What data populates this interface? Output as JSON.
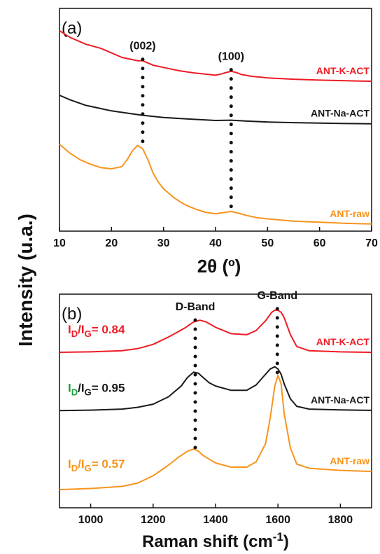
{
  "shared_ylabel": "Intensity (u.a.)",
  "chart_data": [
    {
      "type": "line",
      "panel_label": "(a)",
      "xlabel": "2θ (º)",
      "ylabel": "Intensity (u.a.)",
      "xlim": [
        10,
        70
      ],
      "xticks": [
        10,
        20,
        30,
        40,
        50,
        60,
        70
      ],
      "ylim": [
        0,
        1
      ],
      "yticks_shown": false,
      "grid": false,
      "series": [
        {
          "name": "ANT-K-ACT",
          "color": "#ee1c25",
          "x": [
            10,
            12,
            15,
            18,
            20,
            22,
            24,
            25,
            26,
            27,
            28,
            30,
            33,
            36,
            38,
            40,
            41,
            42,
            43,
            44,
            45,
            47,
            50,
            55,
            60,
            65,
            70
          ],
          "y": [
            0.9,
            0.87,
            0.84,
            0.82,
            0.8,
            0.78,
            0.77,
            0.765,
            0.765,
            0.755,
            0.745,
            0.735,
            0.72,
            0.71,
            0.705,
            0.7,
            0.705,
            0.712,
            0.718,
            0.712,
            0.703,
            0.695,
            0.688,
            0.682,
            0.678,
            0.675,
            0.673
          ]
        },
        {
          "name": "ANT-Na-ACT",
          "color": "#1a1a1a",
          "x": [
            10,
            12,
            15,
            18,
            20,
            23,
            26,
            30,
            35,
            40,
            43,
            46,
            50,
            55,
            60,
            65,
            70
          ],
          "y": [
            0.61,
            0.59,
            0.565,
            0.55,
            0.54,
            0.53,
            0.52,
            0.51,
            0.503,
            0.497,
            0.498,
            0.494,
            0.49,
            0.487,
            0.485,
            0.483,
            0.482
          ]
        },
        {
          "name": "ANT-raw",
          "color": "#f7941d",
          "x": [
            10,
            11,
            12,
            14,
            16,
            18,
            20,
            22,
            23,
            24,
            25,
            26,
            27,
            28,
            29,
            30,
            32,
            34,
            36,
            38,
            40,
            42,
            43,
            44,
            46,
            48,
            50,
            55,
            60,
            65,
            70
          ],
          "y": [
            0.39,
            0.37,
            0.35,
            0.32,
            0.3,
            0.285,
            0.28,
            0.29,
            0.32,
            0.36,
            0.385,
            0.37,
            0.32,
            0.26,
            0.22,
            0.19,
            0.15,
            0.12,
            0.1,
            0.085,
            0.078,
            0.085,
            0.088,
            0.083,
            0.07,
            0.06,
            0.055,
            0.045,
            0.04,
            0.035,
            0.032
          ]
        }
      ],
      "annotations": [
        {
          "text": "(002)",
          "x": 26
        },
        {
          "text": "(100)",
          "x": 43
        }
      ]
    },
    {
      "type": "line",
      "panel_label": "(b)",
      "xlabel": "Raman shift (cm-1)",
      "ylabel": "Intensity (u.a.)",
      "xlim": [
        900,
        1900
      ],
      "xticks": [
        1000,
        1200,
        1400,
        1600,
        1800
      ],
      "ylim": [
        0,
        1
      ],
      "yticks_shown": false,
      "grid": false,
      "series": [
        {
          "name": "ANT-K-ACT",
          "color": "#ee1c25",
          "x": [
            900,
            1000,
            1100,
            1150,
            1200,
            1250,
            1300,
            1330,
            1350,
            1370,
            1400,
            1450,
            1500,
            1530,
            1560,
            1580,
            1590,
            1600,
            1610,
            1620,
            1640,
            1660,
            1700,
            1800,
            1900
          ],
          "y": [
            0.728,
            0.73,
            0.735,
            0.745,
            0.765,
            0.8,
            0.84,
            0.87,
            0.878,
            0.87,
            0.845,
            0.815,
            0.81,
            0.83,
            0.875,
            0.915,
            0.925,
            0.925,
            0.915,
            0.89,
            0.81,
            0.755,
            0.735,
            0.73,
            0.728
          ]
        },
        {
          "name": "ANT-Na-ACT",
          "color": "#1a1a1a",
          "x": [
            900,
            1000,
            1100,
            1150,
            1200,
            1250,
            1290,
            1310,
            1330,
            1345,
            1360,
            1380,
            1400,
            1450,
            1500,
            1530,
            1560,
            1575,
            1590,
            1600,
            1610,
            1620,
            1640,
            1660,
            1700,
            1800,
            1900
          ],
          "y": [
            0.455,
            0.457,
            0.462,
            0.47,
            0.485,
            0.52,
            0.57,
            0.61,
            0.635,
            0.63,
            0.61,
            0.585,
            0.57,
            0.55,
            0.55,
            0.575,
            0.625,
            0.65,
            0.66,
            0.65,
            0.625,
            0.58,
            0.51,
            0.475,
            0.462,
            0.458,
            0.456
          ]
        },
        {
          "name": "ANT-raw",
          "color": "#f7941d",
          "x": [
            900,
            1000,
            1100,
            1150,
            1200,
            1250,
            1280,
            1310,
            1330,
            1345,
            1360,
            1400,
            1450,
            1500,
            1530,
            1560,
            1575,
            1590,
            1600,
            1610,
            1620,
            1640,
            1660,
            1700,
            1800,
            1900
          ],
          "y": [
            0.085,
            0.09,
            0.1,
            0.115,
            0.15,
            0.2,
            0.235,
            0.265,
            0.275,
            0.265,
            0.245,
            0.21,
            0.19,
            0.19,
            0.215,
            0.3,
            0.42,
            0.57,
            0.62,
            0.58,
            0.44,
            0.28,
            0.205,
            0.185,
            0.175,
            0.17
          ]
        }
      ],
      "annotations": [
        {
          "text": "D-Band",
          "x": 1335
        },
        {
          "text": "G-Band",
          "x": 1598
        }
      ],
      "ratio_labels": [
        {
          "prefix": "I",
          "sub1": "D",
          "mid": "/I",
          "sub2": "G",
          "value": "= 0.84",
          "color": "#ee1c25",
          "prefix_color": "#ee1c25"
        },
        {
          "prefix": "I",
          "sub1": "D",
          "mid": "/I",
          "sub2": "G",
          "value": "= 0.95",
          "color": "#1a1a1a",
          "prefix_color": "#1a9e3a"
        },
        {
          "prefix": "I",
          "sub1": "D",
          "mid": "/I",
          "sub2": "G",
          "value": "= 0.57",
          "color": "#f7941d",
          "prefix_color": "#f7941d"
        }
      ]
    }
  ]
}
